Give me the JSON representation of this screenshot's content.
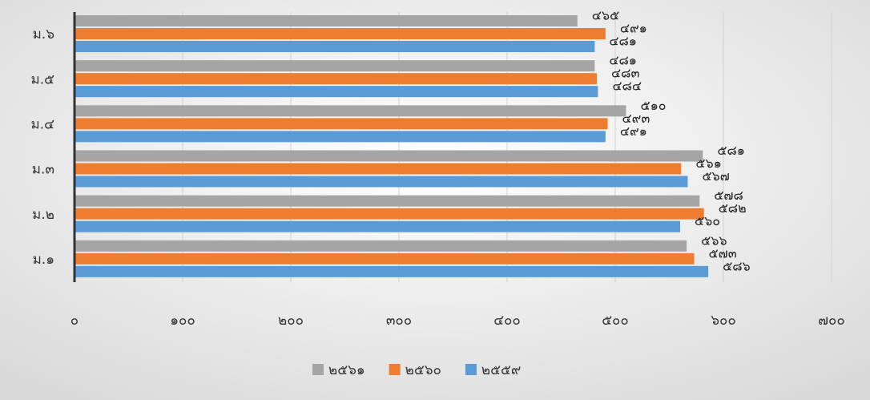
{
  "chart_data": {
    "type": "bar",
    "orientation": "horizontal",
    "categories": [
      "ม.๖",
      "ม.๕",
      "ม.๔",
      "ม.๓",
      "ม.๒",
      "ม.๑"
    ],
    "series": [
      {
        "name": "๒๕๖๑",
        "color": "#a5a5a5",
        "values": [
          465,
          481,
          510,
          581,
          578,
          566
        ],
        "value_labels": [
          "๔๖๕",
          "๔๘๑",
          "๕๑๐",
          "๕๘๑",
          "๕๗๘",
          "๕๖๖"
        ]
      },
      {
        "name": "๒๕๖๐",
        "color": "#ed7d31",
        "values": [
          491,
          483,
          493,
          561,
          582,
          573
        ],
        "value_labels": [
          "๔๙๑",
          "๔๘๓",
          "๔๙๓",
          "๕๖๑",
          "๕๘๒",
          "๕๗๓"
        ]
      },
      {
        "name": "๒๕๕๙",
        "color": "#5b9bd5",
        "values": [
          481,
          484,
          491,
          567,
          560,
          586
        ],
        "value_labels": [
          "๔๘๑",
          "๔๘๔",
          "๔๙๑",
          "๕๖๗",
          "๕๖๐",
          "๕๘๖"
        ]
      }
    ],
    "xlim": [
      0,
      700
    ],
    "xticks": [
      {
        "value": 0,
        "label": "๐"
      },
      {
        "value": 100,
        "label": "๑๐๐"
      },
      {
        "value": 200,
        "label": "๒๐๐"
      },
      {
        "value": 300,
        "label": "๓๐๐"
      },
      {
        "value": 400,
        "label": "๔๐๐"
      },
      {
        "value": 500,
        "label": "๕๐๐"
      },
      {
        "value": 600,
        "label": "๖๐๐"
      },
      {
        "value": 700,
        "label": "๗๐๐"
      }
    ],
    "grid": true,
    "legend": "bottom"
  }
}
